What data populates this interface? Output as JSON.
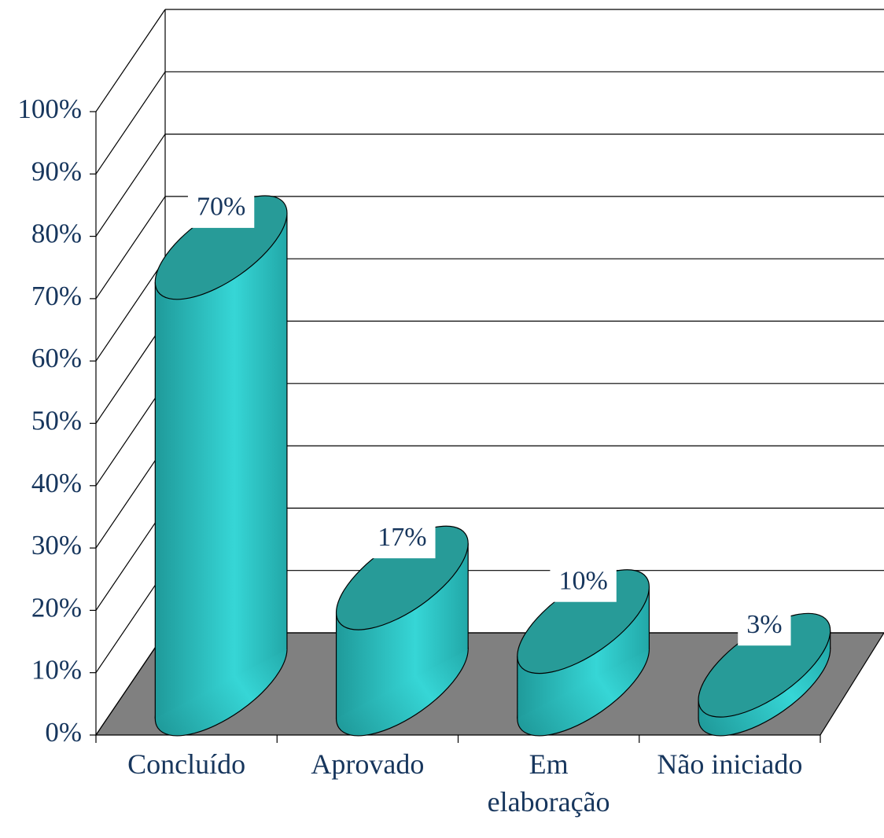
{
  "chart_data": {
    "type": "bar3d",
    "categories": [
      "Concluído",
      "Aprovado",
      "Em elaboração",
      "Não iniciado"
    ],
    "values": [
      70,
      17,
      10,
      3
    ],
    "value_labels": [
      "70%",
      "17%",
      "10%",
      "3%"
    ],
    "color": "#2ec8c8",
    "ylim": [
      0,
      100
    ],
    "yticks": [
      {
        "value": 0,
        "label": "0%"
      },
      {
        "value": 10,
        "label": "10%"
      },
      {
        "value": 20,
        "label": "20%"
      },
      {
        "value": 30,
        "label": "30%"
      },
      {
        "value": 40,
        "label": "40%"
      },
      {
        "value": 50,
        "label": "50%"
      },
      {
        "value": 60,
        "label": "60%"
      },
      {
        "value": 70,
        "label": "70%"
      },
      {
        "value": 80,
        "label": "80%"
      },
      {
        "value": 90,
        "label": "90%"
      },
      {
        "value": 100,
        "label": "100%"
      }
    ],
    "grid": true
  }
}
